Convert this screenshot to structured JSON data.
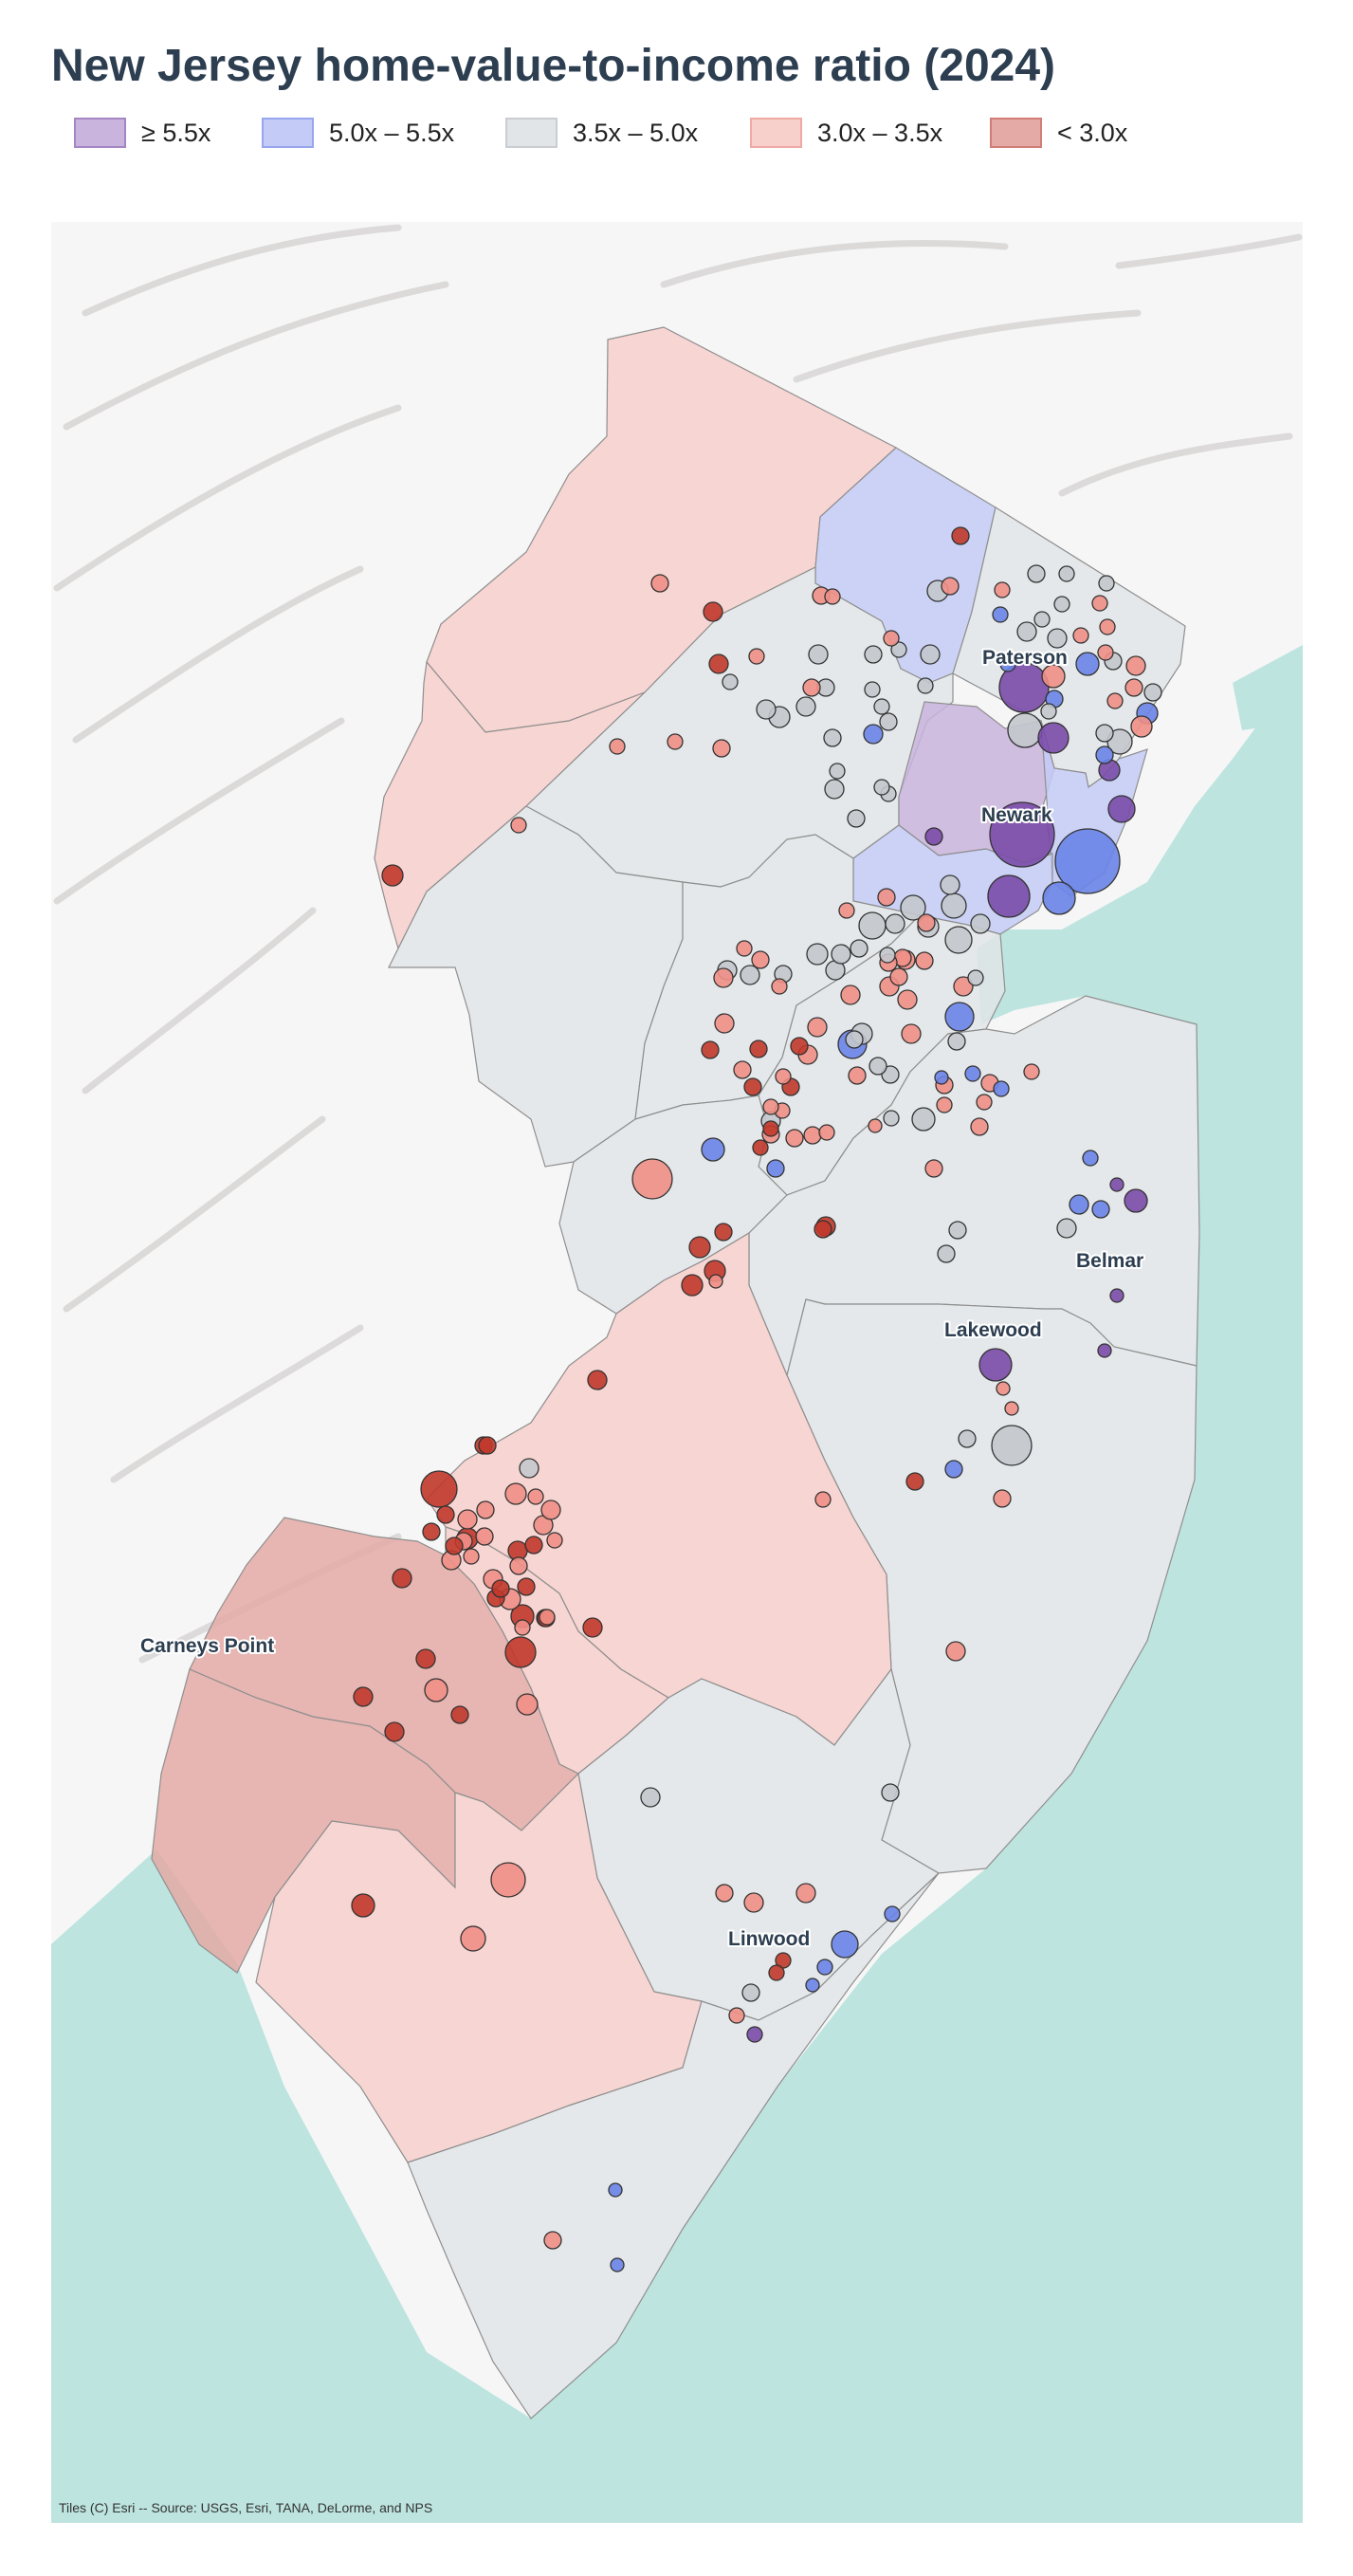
{
  "title": "New Jersey home-value-to-income ratio (2024)",
  "legend": [
    {
      "label": "≥ 5.5x",
      "fill": "#c9b4dd",
      "stroke": "#a586c4"
    },
    {
      "label": "5.0x – 5.5x",
      "fill": "#c3cbf6",
      "stroke": "#97a6ee"
    },
    {
      "label": "3.5x – 5.0x",
      "fill": "#e2e5e7",
      "stroke": "#c9cdd1"
    },
    {
      "label": "3.0x – 3.5x",
      "fill": "#f7cfcb",
      "stroke": "#efaaa4"
    },
    {
      "label": "< 3.0x",
      "fill": "#e4aaa6",
      "stroke": "#d27d77"
    }
  ],
  "colors": {
    "ocean": "#bde4df",
    "land": "#f6f6f6",
    "county_border": "#8f8f8f",
    "dot_stroke": "#333333",
    "bin_colors": [
      "#7a4ba8",
      "#6a84e8",
      "#c3c8cd",
      "#ef8f86",
      "#c0392b"
    ]
  },
  "city_labels": [
    "Paterson",
    "Newark",
    "Belmar",
    "Lakewood",
    "Carneys Point",
    "Linwood"
  ],
  "credit": "Tiles (C) Esri -- Source: USGS, Esri, TANA, DeLorme, and NPS"
}
